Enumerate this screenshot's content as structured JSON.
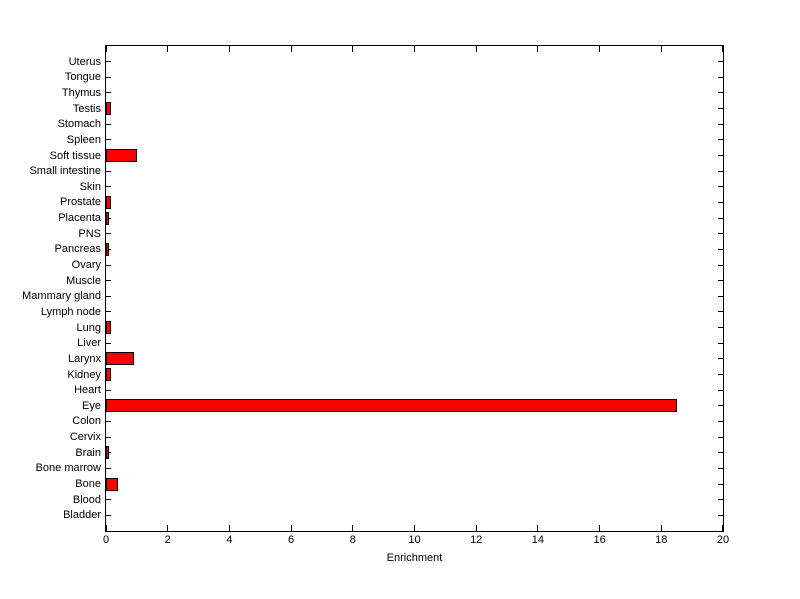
{
  "chart_data": {
    "type": "bar",
    "orientation": "horizontal",
    "title": "",
    "xlabel": "Enrichment",
    "ylabel": "",
    "xlim": [
      0,
      20
    ],
    "xticks": [
      0,
      2,
      4,
      6,
      8,
      10,
      12,
      14,
      16,
      18,
      20
    ],
    "grid": false,
    "legend": false,
    "bar_color": "#ff0000",
    "bar_edge_color": "#000000",
    "axis_color": "#000000",
    "background_color": "#ffffff",
    "categories_top_to_bottom": [
      "Uterus",
      "Tongue",
      "Thymus",
      "Testis",
      "Stomach",
      "Spleen",
      "Soft tissue",
      "Small intestine",
      "Skin",
      "Prostate",
      "Placenta",
      "PNS",
      "Pancreas",
      "Ovary",
      "Muscle",
      "Mammary gland",
      "Lymph node",
      "Lung",
      "Liver",
      "Larynx",
      "Kidney",
      "Heart",
      "Eye",
      "Colon",
      "Cervix",
      "Brain",
      "Bone marrow",
      "Bone",
      "Blood",
      "Bladder"
    ],
    "values": [
      0,
      0,
      0,
      0.15,
      0,
      0,
      1.0,
      0,
      0,
      0.15,
      0.1,
      0,
      0.1,
      0,
      0,
      0,
      0,
      0.15,
      0,
      0.9,
      0.15,
      0,
      18.5,
      0,
      0,
      0.1,
      0,
      0.4,
      0,
      0
    ]
  }
}
